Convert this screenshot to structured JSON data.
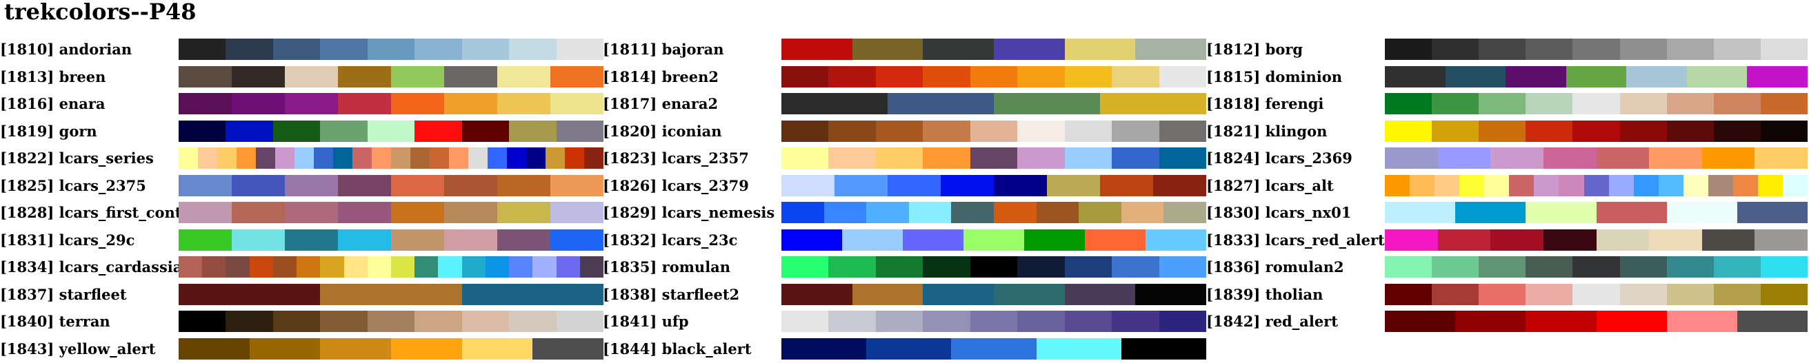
{
  "title": "trekcolors--P48",
  "palettes": [
    {
      "id": "[1810]",
      "name": "andorian",
      "colors": [
        "#222222",
        "#2c3a4e",
        "#3b5a7e",
        "#4d76a4",
        "#6899be",
        "#88b3d2",
        "#a6c8dd",
        "#c3d9e3",
        "#e2e2e2"
      ]
    },
    {
      "id": "[1811]",
      "name": "bajoran",
      "colors": [
        "#c10b0b",
        "#7a6327",
        "#323936",
        "#4d3fa8",
        "#e1d06f",
        "#a6b3a3"
      ]
    },
    {
      "id": "[1812]",
      "name": "borg",
      "colors": [
        "#1a1a1a",
        "#2e2e2e",
        "#454545",
        "#5c5c5c",
        "#757575",
        "#8f8f8f",
        "#a8a8a8",
        "#c2c2c2",
        "#dcdcdc"
      ]
    },
    {
      "id": "[1813]",
      "name": "breen",
      "colors": [
        "#5c4b41",
        "#332925",
        "#dfcbb6",
        "#9c6e18",
        "#91c95b",
        "#6b6767",
        "#f0e898",
        "#ef7322"
      ]
    },
    {
      "id": "[1814]",
      "name": "breen2",
      "colors": [
        "#8a0e0b",
        "#b0150d",
        "#d3290e",
        "#e04e0e",
        "#f27b0d",
        "#f69d14",
        "#f4bc1c",
        "#ead27b",
        "#e7e7e7"
      ]
    },
    {
      "id": "[1815]",
      "name": "dominion",
      "colors": [
        "#313131",
        "#254e63",
        "#5e0f6e",
        "#64a644",
        "#a6c6d8",
        "#b6d8a6",
        "#c314c9"
      ]
    },
    {
      "id": "[1816]",
      "name": "enara",
      "colors": [
        "#5a0f57",
        "#6f0f76",
        "#8b1a88",
        "#c12f43",
        "#f16419",
        "#efa02b",
        "#ecc555",
        "#ede38d"
      ]
    },
    {
      "id": "[1817]",
      "name": "enara2",
      "colors": [
        "#2b2b2b",
        "#3e5885",
        "#5a8b55",
        "#d6b126"
      ]
    },
    {
      "id": "[1818]",
      "name": "ferengi",
      "colors": [
        "#007a20",
        "#3c9745",
        "#7eb97c",
        "#b8d5bb",
        "#e6e6e6",
        "#e3ccb6",
        "#d9a689",
        "#cf845d",
        "#c9692a"
      ]
    },
    {
      "id": "[1819]",
      "name": "gorn",
      "colors": [
        "#000040",
        "#0011c2",
        "#175c16",
        "#6aa36e",
        "#c0f7c7",
        "#ff0d0d",
        "#600000",
        "#a89a4d",
        "#7f7a8a"
      ]
    },
    {
      "id": "[1820]",
      "name": "iconian",
      "colors": [
        "#633110",
        "#8a4718",
        "#a7581e",
        "#c57a49",
        "#e3b397",
        "#f5ece6",
        "#dcdcdc",
        "#a7a7a7",
        "#736f6e"
      ]
    },
    {
      "id": "[1821]",
      "name": "klingon",
      "colors": [
        "#fff600",
        "#d3a10a",
        "#ca6f0b",
        "#cd2b0c",
        "#b00a0a",
        "#8a0a0a",
        "#5c0a0a",
        "#2b0808",
        "#100404"
      ]
    },
    {
      "id": "[1822]",
      "name": "lcars_series",
      "colors": [
        "#ffff99",
        "#ffcc99",
        "#ffcc66",
        "#ff9933",
        "#664466",
        "#cc99cc",
        "#99ccff",
        "#3366cc",
        "#006699",
        "#cc6666",
        "#ff9966",
        "#cc9966",
        "#aa6633",
        "#cc6633",
        "#ff9966",
        "#dddddd",
        "#3366ff",
        "#0000cc",
        "#000088",
        "#cc9933",
        "#cc3300",
        "#882211"
      ]
    },
    {
      "id": "[1823]",
      "name": "lcars_2357",
      "colors": [
        "#ffff99",
        "#ffcc99",
        "#ffcc66",
        "#ff9933",
        "#664466",
        "#cc99cc",
        "#99ccff",
        "#3366cc",
        "#006699"
      ]
    },
    {
      "id": "[1824]",
      "name": "lcars_2369",
      "colors": [
        "#9999cc",
        "#9999ff",
        "#cc99cc",
        "#cc6699",
        "#cc6666",
        "#ff9966",
        "#ff9900",
        "#ffcc66"
      ]
    },
    {
      "id": "[1825]",
      "name": "lcars_2375",
      "colors": [
        "#6688cc",
        "#4455bb",
        "#9977aa",
        "#774466",
        "#dd6644",
        "#aa5533",
        "#bb6622",
        "#ee9955"
      ]
    },
    {
      "id": "[1826]",
      "name": "lcars_2379",
      "colors": [
        "#ccddff",
        "#5599ff",
        "#3366ff",
        "#0011ee",
        "#000088",
        "#bbaa55",
        "#bb4411",
        "#882211"
      ]
    },
    {
      "id": "[1827]",
      "name": "lcars_alt",
      "colors": [
        "#ff9900",
        "#ffbb55",
        "#ffcc88",
        "#ffff33",
        "#ffff99",
        "#cc6666",
        "#cc99cc",
        "#cc88bb",
        "#6666cc",
        "#99aaff",
        "#3399ff",
        "#55bbff",
        "#ffffbb",
        "#aa8877",
        "#ee8844",
        "#ffee00",
        "#ddffff"
      ]
    },
    {
      "id": "[1828]",
      "name": "lcars_first_contact",
      "colors": [
        "#c198b2",
        "#b46757",
        "#ae697d",
        "#97567b",
        "#c9721c",
        "#b98a59",
        "#c8b74b",
        "#bebce3"
      ]
    },
    {
      "id": "[1829]",
      "name": "lcars_nemesis",
      "colors": [
        "#0a45ee",
        "#3786ff",
        "#4fb0ff",
        "#86eeff",
        "#45666b",
        "#d55b13",
        "#9e5420",
        "#a79a3d",
        "#e3b07c",
        "#aca98d"
      ]
    },
    {
      "id": "[1830]",
      "name": "lcars_nx01",
      "colors": [
        "#bdefff",
        "#009ccf",
        "#e1ffad",
        "#cb5f5f",
        "#ecfffd",
        "#4c5f8b"
      ]
    },
    {
      "id": "[1831]",
      "name": "lcars_29c",
      "colors": [
        "#39c924",
        "#72e2e4",
        "#20788c",
        "#24bbe6",
        "#c4946b",
        "#d29ea6",
        "#7b5377",
        "#1e65f5"
      ]
    },
    {
      "id": "[1832]",
      "name": "lcars_23c",
      "colors": [
        "#0000ff",
        "#99ccff",
        "#6666ff",
        "#99ff66",
        "#009900",
        "#ff6633",
        "#66ccff"
      ]
    },
    {
      "id": "[1833]",
      "name": "lcars_red_alert",
      "colors": [
        "#f517c3",
        "#bf2237",
        "#a30e24",
        "#3b0811",
        "#dad5b6",
        "#f0dbb8",
        "#4c4b45",
        "#9d9898"
      ]
    },
    {
      "id": "[1834]",
      "name": "lcars_cardassian",
      "colors": [
        "#b46356",
        "#944d40",
        "#7a4b42",
        "#ca480d",
        "#9b4f21",
        "#cf7513",
        "#d9a41e",
        "#ffe483",
        "#ffff9a",
        "#d9e645",
        "#328d76",
        "#5bf2ff",
        "#22aacc",
        "#0b93e5",
        "#5984ff",
        "#a1afff",
        "#6d6aef",
        "#4e3d52"
      ]
    },
    {
      "id": "[1835]",
      "name": "romulan",
      "colors": [
        "#24ff6f",
        "#1dbb51",
        "#13792f",
        "#053314",
        "#000000",
        "#101c36",
        "#1d3e7a",
        "#3c73ce",
        "#4c9ffc"
      ]
    },
    {
      "id": "[1836]",
      "name": "romulan2",
      "colors": [
        "#84f2b1",
        "#6cc990",
        "#5f9475",
        "#485d52",
        "#323335",
        "#395e5c",
        "#34898f",
        "#35b3bb",
        "#2ddff0"
      ]
    },
    {
      "id": "[1837]",
      "name": "starfleet",
      "colors": [
        "#5b1414",
        "#ad722c",
        "#1a6384"
      ]
    },
    {
      "id": "[1838]",
      "name": "starfleet2",
      "colors": [
        "#5b1414",
        "#ad722c",
        "#1a6384",
        "#2c6b6f",
        "#473c59",
        "#050505"
      ]
    },
    {
      "id": "[1839]",
      "name": "tholian",
      "colors": [
        "#620000",
        "#a53b34",
        "#e96e67",
        "#edaba6",
        "#e5e5e5",
        "#dfd5c2",
        "#d0c28c",
        "#b4a04b",
        "#9b7f02"
      ]
    },
    {
      "id": "[1840]",
      "name": "terran",
      "colors": [
        "#000000",
        "#2e200f",
        "#583c18",
        "#815b31",
        "#a5805e",
        "#cba584",
        "#dbbca6",
        "#d4c8bc",
        "#d3d3d3"
      ]
    },
    {
      "id": "[1841]",
      "name": "ufp",
      "colors": [
        "#e5e5e5",
        "#c9c9d4",
        "#aeacc3",
        "#9491b5",
        "#7c76a8",
        "#6a629d",
        "#584a93",
        "#433487",
        "#2b2580"
      ]
    },
    {
      "id": "[1842]",
      "name": "red_alert",
      "colors": [
        "#5f0000",
        "#910000",
        "#c20000",
        "#ff0000",
        "#ff8989",
        "#4d4d4d"
      ]
    },
    {
      "id": "[1843]",
      "name": "yellow_alert",
      "colors": [
        "#674500",
        "#986700",
        "#cd8a14",
        "#ffa40e",
        "#ffd866",
        "#4d4d4d"
      ]
    },
    {
      "id": "[1844]",
      "name": "black_alert",
      "colors": [
        "#000c5f",
        "#0d3796",
        "#2f73df",
        "#63f8fb",
        "#000000"
      ]
    }
  ]
}
